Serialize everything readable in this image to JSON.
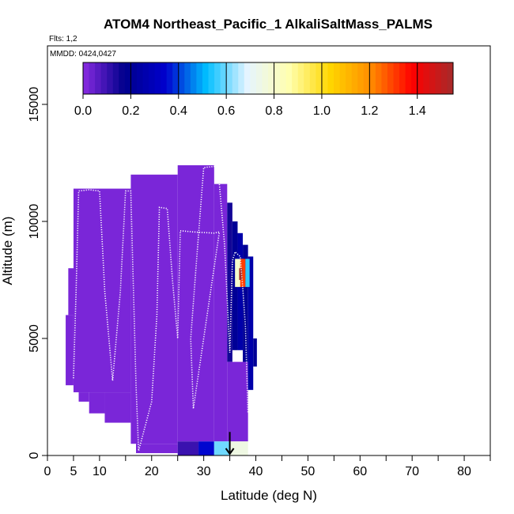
{
  "chart_data": {
    "type": "heatmap",
    "title": "ATOM4 Northeast_Pacific_1 AlkaliSaltMass_PALMS",
    "flights_note": "Flts: 1,2",
    "dates_note": "MMDD: 0424,0427",
    "xlabel": "Latitude (deg N)",
    "ylabel": "Altitude (m)",
    "xlim": [
      0,
      85
    ],
    "ylim": [
      0,
      17500
    ],
    "x_ticks": [
      0,
      5,
      10,
      20,
      30,
      40,
      50,
      60,
      70,
      80
    ],
    "x_minor_ticks": [
      15,
      25,
      35,
      45,
      55,
      65,
      75,
      85
    ],
    "y_ticks": [
      0,
      5000,
      10000,
      15000
    ],
    "colorbar": {
      "min": 0.0,
      "max": 1.55,
      "tick_values": [
        0.0,
        0.2,
        0.4,
        0.6,
        0.8,
        1.0,
        1.2,
        1.4
      ],
      "tick_labels": [
        "0.0",
        "0.2",
        "0.4",
        "0.6",
        "0.8",
        "1.0",
        "1.2",
        "1.4"
      ],
      "colors": [
        "#8a2be2",
        "#00008b",
        "#0000cd",
        "#00bfff",
        "#e6f4ff",
        "#ffffb0",
        "#ffd700",
        "#ff8c00",
        "#ff0000",
        "#a52a2a"
      ]
    },
    "cells": [
      {
        "x0": 3.5,
        "x1": 5,
        "y0": 3000,
        "y1": 6000,
        "value": 0.02
      },
      {
        "x0": 4,
        "x1": 6,
        "y0": 6000,
        "y1": 8000,
        "value": 0.02
      },
      {
        "x0": 5,
        "x1": 16,
        "y0": 2700,
        "y1": 11400,
        "value": 0.02
      },
      {
        "x0": 6,
        "x1": 8,
        "y0": 2300,
        "y1": 2700,
        "value": 0.02
      },
      {
        "x0": 8,
        "x1": 11,
        "y0": 1800,
        "y1": 2700,
        "value": 0.02
      },
      {
        "x0": 11,
        "x1": 16,
        "y0": 1400,
        "y1": 2700,
        "value": 0.02
      },
      {
        "x0": 16,
        "x1": 25,
        "y0": 500,
        "y1": 12000,
        "value": 0.02
      },
      {
        "x0": 17,
        "x1": 25,
        "y0": 100,
        "y1": 500,
        "value": 0.02
      },
      {
        "x0": 25,
        "x1": 32,
        "y0": 600,
        "y1": 12400,
        "value": 0.02
      },
      {
        "x0": 32,
        "x1": 34.5,
        "y0": 600,
        "y1": 11600,
        "value": 0.02
      },
      {
        "x0": 34.5,
        "x1": 35.5,
        "y0": 4000,
        "y1": 10800,
        "value": 0.15
      },
      {
        "x0": 35.5,
        "x1": 36.5,
        "y0": 4500,
        "y1": 10000,
        "value": 0.2
      },
      {
        "x0": 36.5,
        "x1": 37.5,
        "y0": 4500,
        "y1": 9500,
        "value": 0.25
      },
      {
        "x0": 37.5,
        "x1": 38.5,
        "y0": 3500,
        "y1": 9000,
        "value": 0.2
      },
      {
        "x0": 34.5,
        "x1": 38.5,
        "y0": 600,
        "y1": 4000,
        "value": 0.02
      },
      {
        "x0": 38.5,
        "x1": 39.5,
        "y0": 2800,
        "y1": 8500,
        "value": 0.25
      },
      {
        "x0": 39.5,
        "x1": 40.2,
        "y0": 3800,
        "y1": 5000,
        "value": 0.2
      },
      {
        "x0": 36,
        "x1": 37.5,
        "y0": 7200,
        "y1": 8400,
        "value": 0.8
      },
      {
        "x0": 37,
        "x1": 38,
        "y0": 7200,
        "y1": 8400,
        "value": 1.3
      },
      {
        "x0": 38,
        "x1": 38.8,
        "y0": 7200,
        "y1": 8400,
        "value": 0.55
      },
      {
        "x0": 36.8,
        "x1": 37.4,
        "y0": 7500,
        "y1": 8000,
        "value": 1.55
      },
      {
        "x0": 25,
        "x1": 29,
        "y0": 0,
        "y1": 600,
        "value": 0.1
      },
      {
        "x0": 29,
        "x1": 32,
        "y0": 0,
        "y1": 600,
        "value": 0.35
      },
      {
        "x0": 32,
        "x1": 35,
        "y0": 0,
        "y1": 600,
        "value": 0.6
      },
      {
        "x0": 35,
        "x1": 38.5,
        "y0": 0,
        "y1": 600,
        "value": 0.75
      }
    ],
    "flight_track": [
      [
        5,
        3300
      ],
      [
        5.5,
        7000
      ],
      [
        6,
        11300
      ],
      [
        8,
        11350
      ],
      [
        10,
        11300
      ],
      [
        11,
        7000
      ],
      [
        12.5,
        3200
      ],
      [
        14,
        7000
      ],
      [
        15,
        11300
      ],
      [
        16,
        11300
      ],
      [
        17,
        3000
      ],
      [
        17.5,
        200
      ],
      [
        20,
        2300
      ],
      [
        21,
        6000
      ],
      [
        21.5,
        10600
      ],
      [
        23,
        10550
      ],
      [
        24,
        7500
      ],
      [
        25,
        5000
      ],
      [
        25.5,
        9600
      ],
      [
        28,
        9550
      ],
      [
        32,
        9500
      ],
      [
        33,
        9550
      ],
      [
        28,
        2000
      ],
      [
        27.5,
        5000
      ],
      [
        28.5,
        8000
      ],
      [
        30,
        12300
      ],
      [
        32,
        12350
      ],
      [
        33,
        11600
      ],
      [
        34,
        9000
      ],
      [
        35,
        4400
      ],
      [
        35.5,
        8300
      ],
      [
        36,
        8700
      ],
      [
        37,
        8500
      ],
      [
        37.5,
        7100
      ],
      [
        38,
        5500
      ],
      [
        38.5,
        1800
      ]
    ],
    "arrow": {
      "x": 35,
      "y_from": 600,
      "y_to": 0
    }
  }
}
